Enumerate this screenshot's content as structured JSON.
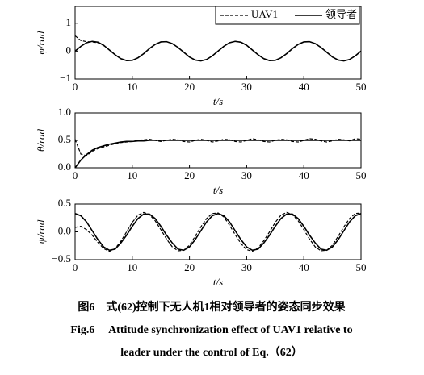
{
  "chart_data": [
    {
      "type": "line",
      "ylabel": "φ/rad",
      "xlabel": "t/s",
      "legend": "upper right",
      "x": [
        0,
        1,
        2,
        3,
        4,
        5,
        6,
        7,
        8,
        9,
        10,
        11,
        12,
        13,
        14,
        15,
        16,
        17,
        18,
        19,
        20,
        21,
        22,
        23,
        24,
        25,
        26,
        27,
        28,
        29,
        30,
        31,
        32,
        33,
        34,
        35,
        36,
        37,
        38,
        39,
        40,
        41,
        42,
        43,
        44,
        45,
        46,
        47,
        48,
        49,
        50
      ],
      "xlim": [
        0,
        50
      ],
      "xticks": [
        0,
        10,
        20,
        30,
        40,
        50
      ],
      "ylim": [
        -1,
        1.6
      ],
      "yticks": [
        {
          "value": -1,
          "label": "−1"
        },
        0,
        1
      ],
      "series": [
        {
          "name": "UAV1",
          "color": "#000000",
          "dash": true,
          "values": [
            0.55,
            0.38,
            0.34,
            0.33,
            0.3,
            0.2,
            0.04,
            -0.13,
            -0.27,
            -0.34,
            -0.33,
            -0.24,
            -0.09,
            0.09,
            0.24,
            0.33,
            0.34,
            0.27,
            0.13,
            -0.04,
            -0.21,
            -0.32,
            -0.35,
            -0.3,
            -0.17,
            0,
            0.17,
            0.3,
            0.35,
            0.32,
            0.21,
            0.04,
            -0.13,
            -0.27,
            -0.34,
            -0.33,
            -0.24,
            -0.09,
            0.09,
            0.24,
            0.33,
            0.34,
            0.27,
            0.13,
            -0.04,
            -0.21,
            -0.32,
            -0.35,
            -0.3,
            -0.17,
            0
          ]
        },
        {
          "name": "领导者",
          "color": "#000000",
          "dash": false,
          "values": [
            0,
            0.17,
            0.3,
            0.35,
            0.32,
            0.21,
            0.04,
            -0.13,
            -0.27,
            -0.34,
            -0.33,
            -0.24,
            -0.09,
            0.09,
            0.24,
            0.33,
            0.34,
            0.27,
            0.13,
            -0.04,
            -0.21,
            -0.32,
            -0.35,
            -0.3,
            -0.17,
            0,
            0.17,
            0.3,
            0.35,
            0.32,
            0.21,
            0.04,
            -0.13,
            -0.27,
            -0.34,
            -0.33,
            -0.24,
            -0.09,
            0.09,
            0.24,
            0.33,
            0.34,
            0.27,
            0.13,
            -0.04,
            -0.21,
            -0.32,
            -0.35,
            -0.3,
            -0.17,
            0
          ]
        }
      ]
    },
    {
      "type": "line",
      "ylabel": "θ/rad",
      "xlabel": "t/s",
      "x": [
        0,
        1,
        2,
        3,
        4,
        5,
        6,
        7,
        8,
        9,
        10,
        11,
        12,
        13,
        14,
        15,
        16,
        17,
        18,
        19,
        20,
        21,
        22,
        23,
        24,
        25,
        26,
        27,
        28,
        29,
        30,
        31,
        32,
        33,
        34,
        35,
        36,
        37,
        38,
        39,
        40,
        41,
        42,
        43,
        44,
        45,
        46,
        47,
        48,
        49,
        50
      ],
      "xlim": [
        0,
        50
      ],
      "xticks": [
        0,
        10,
        20,
        30,
        40,
        50
      ],
      "ylim": [
        0,
        1
      ],
      "yticks": [
        {
          "value": 0,
          "label": "0.0"
        },
        0.5,
        {
          "value": 1,
          "label": "1.0"
        }
      ],
      "series": [
        {
          "color": "#000000",
          "dash": true,
          "values": [
            0.52,
            0.25,
            0.22,
            0.3,
            0.35,
            0.38,
            0.41,
            0.44,
            0.46,
            0.47,
            0.48,
            0.5,
            0.51,
            0.52,
            0.5,
            0.48,
            0.5,
            0.52,
            0.51,
            0.48,
            0.47,
            0.5,
            0.52,
            0.5,
            0.47,
            0.49,
            0.52,
            0.51,
            0.48,
            0.47,
            0.5,
            0.53,
            0.51,
            0.48,
            0.47,
            0.5,
            0.52,
            0.51,
            0.48,
            0.47,
            0.5,
            0.53,
            0.52,
            0.49,
            0.47,
            0.49,
            0.52,
            0.51,
            0.49,
            0.53,
            0.52
          ]
        },
        {
          "color": "#000000",
          "dash": false,
          "values": [
            0,
            0.14,
            0.24,
            0.32,
            0.37,
            0.4,
            0.43,
            0.45,
            0.47,
            0.48,
            0.48,
            0.49,
            0.49,
            0.5,
            0.5,
            0.5,
            0.5,
            0.5,
            0.5,
            0.5,
            0.5,
            0.5,
            0.5,
            0.5,
            0.5,
            0.5,
            0.5,
            0.5,
            0.5,
            0.5,
            0.5,
            0.5,
            0.5,
            0.5,
            0.5,
            0.5,
            0.5,
            0.5,
            0.5,
            0.5,
            0.5,
            0.5,
            0.5,
            0.5,
            0.5,
            0.5,
            0.5,
            0.5,
            0.5,
            0.5,
            0.5
          ]
        }
      ]
    },
    {
      "type": "line",
      "ylabel": "ψ/rad",
      "xlabel": "t/s",
      "x": [
        0,
        1,
        2,
        3,
        4,
        5,
        6,
        7,
        8,
        9,
        10,
        11,
        12,
        13,
        14,
        15,
        16,
        17,
        18,
        19,
        20,
        21,
        22,
        23,
        24,
        25,
        26,
        27,
        28,
        29,
        30,
        31,
        32,
        33,
        34,
        35,
        36,
        37,
        38,
        39,
        40,
        41,
        42,
        43,
        44,
        45,
        46,
        47,
        48,
        49,
        50
      ],
      "xlim": [
        0,
        50
      ],
      "xticks": [
        0,
        10,
        20,
        30,
        40,
        50
      ],
      "ylim": [
        -0.5,
        0.5
      ],
      "yticks": [
        {
          "value": -0.5,
          "label": "−0.5"
        },
        {
          "value": 0,
          "label": "0.0"
        },
        0.5
      ],
      "series": [
        {
          "color": "#000000",
          "dash": true,
          "values": [
            0.08,
            0.1,
            0.04,
            -0.06,
            -0.19,
            -0.3,
            -0.35,
            -0.3,
            -0.17,
            0,
            0.17,
            0.3,
            0.35,
            0.31,
            0.2,
            0.04,
            -0.13,
            -0.27,
            -0.34,
            -0.33,
            -0.24,
            -0.08,
            0.09,
            0.24,
            0.33,
            0.34,
            0.27,
            0.12,
            -0.05,
            -0.21,
            -0.32,
            -0.35,
            -0.29,
            -0.16,
            0,
            0.17,
            0.3,
            0.35,
            0.31,
            0.2,
            0.04,
            -0.13,
            -0.27,
            -0.34,
            -0.33,
            -0.24,
            -0.08,
            0.09,
            0.24,
            0.33,
            0.34
          ]
        },
        {
          "color": "#000000",
          "dash": false,
          "values": [
            0.33,
            0.29,
            0.18,
            0.02,
            -0.14,
            -0.27,
            -0.33,
            -0.31,
            -0.2,
            -0.06,
            0.1,
            0.24,
            0.32,
            0.32,
            0.24,
            0.1,
            -0.06,
            -0.2,
            -0.31,
            -0.33,
            -0.27,
            -0.14,
            0.02,
            0.18,
            0.29,
            0.33,
            0.29,
            0.18,
            0.02,
            -0.14,
            -0.27,
            -0.33,
            -0.31,
            -0.2,
            -0.06,
            0.1,
            0.24,
            0.32,
            0.32,
            0.24,
            0.1,
            -0.06,
            -0.2,
            -0.31,
            -0.33,
            -0.27,
            -0.14,
            0.02,
            0.18,
            0.29,
            0.33
          ]
        }
      ]
    }
  ],
  "caption": {
    "cn": "图6　式(62)控制下无人机1相对领导者的姿态同步效果",
    "en": [
      "Fig.6　 Attitude synchronization effect of UAV1 relative to",
      "leader under the control of Eq.（62）"
    ]
  }
}
